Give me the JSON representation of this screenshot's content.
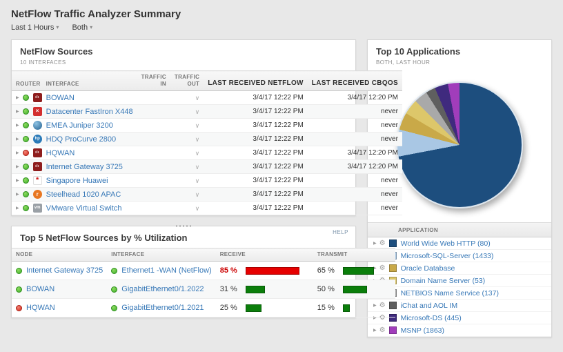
{
  "page": {
    "title": "NetFlow Traffic Analyzer Summary",
    "filters": [
      {
        "label": "Last 1 Hours"
      },
      {
        "label": "Both"
      }
    ]
  },
  "netflow_sources": {
    "title": "NetFlow Sources",
    "subtitle": "10 INTERFACES",
    "columns": [
      "ROUTER",
      "INTERFACE",
      "TRAFFIC IN",
      "TRAFFIC OUT",
      "LAST RECEIVED NETFLOW",
      "LAST RECEIVED CBQOS"
    ],
    "rows": [
      {
        "interface": "BOWAN",
        "vendor": "cisco",
        "status": "up",
        "last_netflow": "3/4/17 12:22 PM",
        "last_cbqos": "3/4/17 12:20 PM"
      },
      {
        "interface": "Datacenter FastIron X448",
        "vendor": "brocade",
        "status": "up",
        "last_netflow": "3/4/17 12:22 PM",
        "last_cbqos": "never"
      },
      {
        "interface": "EMEA Juniper 3200",
        "vendor": "juniper",
        "status": "up",
        "last_netflow": "3/4/17 12:22 PM",
        "last_cbqos": "never"
      },
      {
        "interface": "HDQ ProCurve 2800",
        "vendor": "hp",
        "status": "up",
        "last_netflow": "3/4/17 12:22 PM",
        "last_cbqos": "never"
      },
      {
        "interface": "HQWAN",
        "vendor": "cisco",
        "status": "down",
        "last_netflow": "3/4/17 12:22 PM",
        "last_cbqos": "3/4/17 12:20 PM"
      },
      {
        "interface": "Internet Gateway 3725",
        "vendor": "cisco",
        "status": "up",
        "last_netflow": "3/4/17 12:22 PM",
        "last_cbqos": "3/4/17 12:20 PM"
      },
      {
        "interface": "Singapore Huawei",
        "vendor": "huawei",
        "status": "up",
        "last_netflow": "3/4/17 12:22 PM",
        "last_cbqos": "never"
      },
      {
        "interface": "Steelhead 1020 APAC",
        "vendor": "riverbed",
        "status": "up",
        "last_netflow": "3/4/17 12:22 PM",
        "last_cbqos": "never"
      },
      {
        "interface": "VMware Virtual Switch",
        "vendor": "vmware",
        "status": "up",
        "last_netflow": "3/4/17 12:22 PM",
        "last_cbqos": "never"
      }
    ]
  },
  "top5": {
    "title": "Top 5 NetFlow Sources by % Utilization",
    "help_label": "HELP",
    "columns": [
      "NODE",
      "INTERFACE",
      "RECEIVE",
      "TRANSMIT"
    ],
    "rows": [
      {
        "node": "Internet Gateway 3725",
        "node_status": "up",
        "interface": "Ethernet1 -WAN (NetFlow)",
        "interface_status": "up",
        "receive_pct": 85,
        "receive_label": "85 %",
        "receive_color": "#e60000",
        "transmit_pct": 65,
        "transmit_label": "65 %",
        "transmit_color": "#0b7e0b"
      },
      {
        "node": "BOWAN",
        "node_status": "up",
        "interface": "GigabitEthernet0/1.2022",
        "interface_status": "up",
        "receive_pct": 31,
        "receive_label": "31 %",
        "receive_color": "#0b7e0b",
        "transmit_pct": 50,
        "transmit_label": "50 %",
        "transmit_color": "#0b7e0b"
      },
      {
        "node": "HQWAN",
        "node_status": "down",
        "interface": "GigabitEthernet0/1.2021",
        "interface_status": "up",
        "receive_pct": 25,
        "receive_label": "25 %",
        "receive_color": "#0b7e0b",
        "transmit_pct": 15,
        "transmit_label": "15 %",
        "transmit_color": "#0b7e0b"
      }
    ]
  },
  "top10": {
    "title": "Top 10 Applications",
    "subtitle": "BOTH, LAST HOUR",
    "table_header": "APPLICATION"
  },
  "chart_data": {
    "type": "pie",
    "title": "Top 10 Applications",
    "legend_position": "bottom",
    "labels": [
      "World Wide Web HTTP (80)",
      "Microsoft-SQL-Server (1433)",
      "Oracle Database",
      "Domain Name Server (53)",
      "NETBIOS Name Service (137)",
      "iChat and AOL IM",
      "Microsoft-DS (445)",
      "MSNP (1863)"
    ],
    "values": [
      72,
      7,
      4.5,
      4,
      3.5,
      2.5,
      3.5,
      3
    ],
    "colors": [
      "#1d4e7e",
      "#a9c7e4",
      "#c9a948",
      "#ddc76a",
      "#a9a9a9",
      "#5f5f5f",
      "#3f2a7e",
      "#a13dbb"
    ]
  }
}
